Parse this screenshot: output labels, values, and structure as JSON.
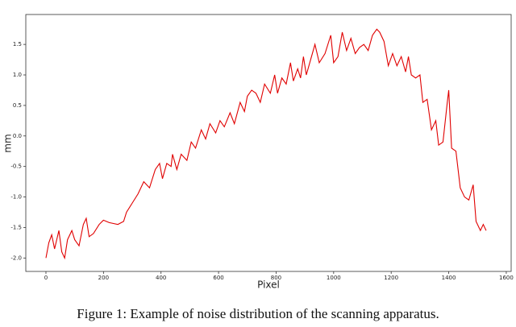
{
  "chart_data": {
    "type": "line",
    "x_label": "Pixel",
    "y_label": "mm",
    "x": [
      0,
      10,
      20,
      30,
      45,
      55,
      65,
      75,
      90,
      100,
      115,
      130,
      140,
      150,
      165,
      185,
      200,
      220,
      250,
      270,
      280,
      300,
      320,
      340,
      360,
      380,
      395,
      405,
      420,
      435,
      440,
      455,
      470,
      490,
      505,
      520,
      540,
      555,
      570,
      590,
      605,
      620,
      640,
      655,
      675,
      690,
      700,
      715,
      730,
      745,
      760,
      780,
      795,
      805,
      820,
      835,
      850,
      860,
      875,
      885,
      895,
      905,
      920,
      935,
      950,
      970,
      990,
      1000,
      1015,
      1030,
      1045,
      1060,
      1075,
      1090,
      1105,
      1120,
      1135,
      1150,
      1160,
      1175,
      1190,
      1205,
      1220,
      1235,
      1250,
      1260,
      1270,
      1285,
      1300,
      1310,
      1325,
      1340,
      1355,
      1365,
      1380,
      1395,
      1400,
      1410,
      1425,
      1440,
      1455,
      1470,
      1485,
      1495,
      1510,
      1520,
      1530
    ],
    "series": [
      {
        "color": "#e00000",
        "values": [
          -2.0,
          -1.75,
          -1.62,
          -1.85,
          -1.55,
          -1.9,
          -2.0,
          -1.7,
          -1.55,
          -1.7,
          -1.8,
          -1.45,
          -1.35,
          -1.65,
          -1.6,
          -1.45,
          -1.38,
          -1.42,
          -1.45,
          -1.4,
          -1.25,
          -1.1,
          -0.95,
          -0.75,
          -0.85,
          -0.55,
          -0.45,
          -0.7,
          -0.45,
          -0.5,
          -0.3,
          -0.55,
          -0.3,
          -0.4,
          -0.1,
          -0.2,
          0.1,
          -0.05,
          0.2,
          0.05,
          0.25,
          0.15,
          0.38,
          0.2,
          0.55,
          0.4,
          0.65,
          0.75,
          0.7,
          0.55,
          0.85,
          0.7,
          1.0,
          0.7,
          0.95,
          0.85,
          1.2,
          0.9,
          1.1,
          0.95,
          1.3,
          1.0,
          1.25,
          1.5,
          1.2,
          1.35,
          1.65,
          1.2,
          1.3,
          1.7,
          1.4,
          1.6,
          1.35,
          1.45,
          1.5,
          1.4,
          1.65,
          1.75,
          1.7,
          1.55,
          1.15,
          1.35,
          1.15,
          1.3,
          1.05,
          1.3,
          1.0,
          0.95,
          1.0,
          0.55,
          0.6,
          0.1,
          0.25,
          -0.15,
          -0.1,
          0.55,
          0.75,
          -0.2,
          -0.25,
          -0.85,
          -1.0,
          -1.05,
          -0.8,
          -1.4,
          -1.55,
          -1.45,
          -1.55
        ]
      }
    ],
    "xlim": [
      -70,
      1617
    ],
    "ylim": [
      -2.22,
      1.99
    ],
    "xticks": [
      0,
      200,
      400,
      600,
      800,
      1000,
      1200,
      1400,
      1600
    ],
    "yticks": [
      1.5,
      {
        "value": 1,
        "label": "1.0"
      },
      0.5,
      {
        "value": 0,
        "label": "0.0"
      },
      -0.5,
      {
        "value": -1,
        "label": "-1.0"
      },
      -1.5,
      {
        "value": -2,
        "label": "-2.0"
      }
    ]
  },
  "caption": "Figure 1: Example of noise distribution of the scanning apparatus."
}
